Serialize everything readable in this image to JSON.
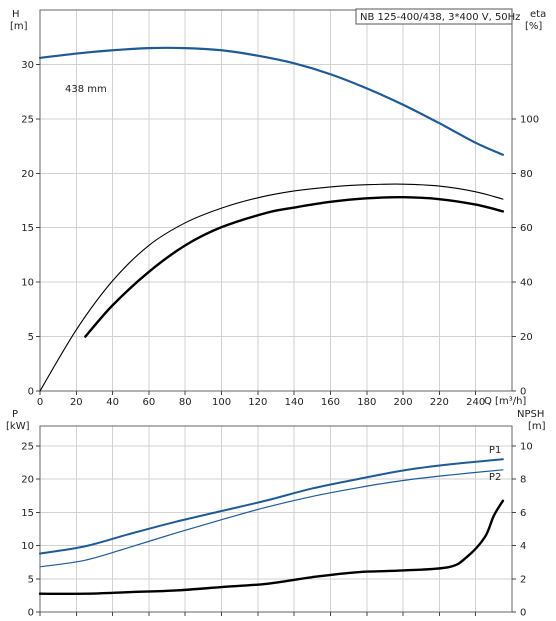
{
  "title": "NB 125-400/438, 3*400 V, 50Hz",
  "chart_data": [
    {
      "type": "line",
      "name": "head-efficiency",
      "x_label": "Q [m³/h]",
      "x_ticks": [
        0,
        20,
        40,
        60,
        80,
        100,
        120,
        140,
        160,
        180,
        200,
        220,
        240
      ],
      "xlim": [
        0,
        260
      ],
      "left_axis": {
        "label_line1": "H",
        "label_line2": "[m]",
        "ylim": [
          0,
          35
        ],
        "ticks": [
          0,
          5,
          10,
          15,
          20,
          25,
          30
        ]
      },
      "right_axis": {
        "label_line1": "eta",
        "label_line2": "[%]",
        "ylim": [
          0,
          140
        ],
        "ticks": [
          0,
          20,
          40,
          60,
          80,
          100
        ]
      },
      "annotation": "438 mm",
      "series": [
        {
          "key": "head",
          "axis": "left",
          "color": "#1f5a96",
          "width": 2.2,
          "x": [
            0,
            20,
            40,
            60,
            80,
            100,
            120,
            140,
            160,
            180,
            200,
            220,
            240,
            255
          ],
          "y": [
            30.6,
            31.0,
            31.3,
            31.5,
            31.5,
            31.3,
            30.8,
            30.1,
            29.1,
            27.8,
            26.3,
            24.6,
            22.8,
            21.7
          ]
        },
        {
          "key": "eta-thin",
          "axis": "right",
          "color": "#000000",
          "width": 1.1,
          "x": [
            0,
            20,
            40,
            60,
            80,
            100,
            120,
            140,
            160,
            180,
            200,
            220,
            240,
            255
          ],
          "y": [
            0,
            22.5,
            40.5,
            53.5,
            61.8,
            67.2,
            71.0,
            73.5,
            75.0,
            75.8,
            76.0,
            75.3,
            73.2,
            70.5
          ]
        },
        {
          "key": "eta-thick",
          "axis": "right",
          "color": "#000000",
          "width": 2.4,
          "x": [
            25,
            40,
            60,
            80,
            100,
            125,
            140,
            160,
            180,
            200,
            220,
            240,
            255
          ],
          "y": [
            20,
            31.5,
            43.8,
            53.5,
            60.2,
            65.5,
            67.4,
            69.5,
            70.8,
            71.2,
            70.5,
            68.5,
            66.0
          ]
        }
      ]
    },
    {
      "type": "line",
      "name": "power-npsh",
      "xlim": [
        0,
        260
      ],
      "left_axis": {
        "label_line1": "P",
        "label_line2": "[kW]",
        "ylim": [
          0,
          28
        ],
        "ticks": [
          0,
          5,
          10,
          15,
          20,
          25
        ]
      },
      "right_axis": {
        "label_line1": "NPSH",
        "label_line2": "[m]",
        "ylim": [
          0,
          11.2
        ],
        "ticks": [
          0,
          2,
          4,
          6,
          8,
          10
        ]
      },
      "series": [
        {
          "key": "P1",
          "label": "P1",
          "axis": "left",
          "color": "#1f5a96",
          "width": 2.0,
          "x": [
            0,
            25,
            50,
            75,
            100,
            125,
            150,
            175,
            200,
            225,
            255
          ],
          "y": [
            8.8,
            9.9,
            11.8,
            13.6,
            15.2,
            16.8,
            18.6,
            20.0,
            21.3,
            22.2,
            23.0
          ]
        },
        {
          "key": "P2",
          "label": "P2",
          "axis": "left",
          "color": "#1f5a96",
          "width": 1.2,
          "x": [
            0,
            25,
            50,
            75,
            100,
            125,
            150,
            175,
            200,
            225,
            255
          ],
          "y": [
            6.8,
            7.8,
            9.8,
            11.9,
            13.9,
            15.8,
            17.4,
            18.7,
            19.8,
            20.6,
            21.4
          ]
        },
        {
          "key": "npsh",
          "axis": "right",
          "color": "#000000",
          "width": 2.4,
          "x": [
            0,
            25,
            50,
            75,
            100,
            125,
            150,
            175,
            200,
            225,
            235,
            245,
            250,
            255
          ],
          "y": [
            1.1,
            1.1,
            1.2,
            1.3,
            1.5,
            1.7,
            2.1,
            2.4,
            2.5,
            2.7,
            3.3,
            4.5,
            5.8,
            6.7
          ]
        }
      ]
    }
  ]
}
